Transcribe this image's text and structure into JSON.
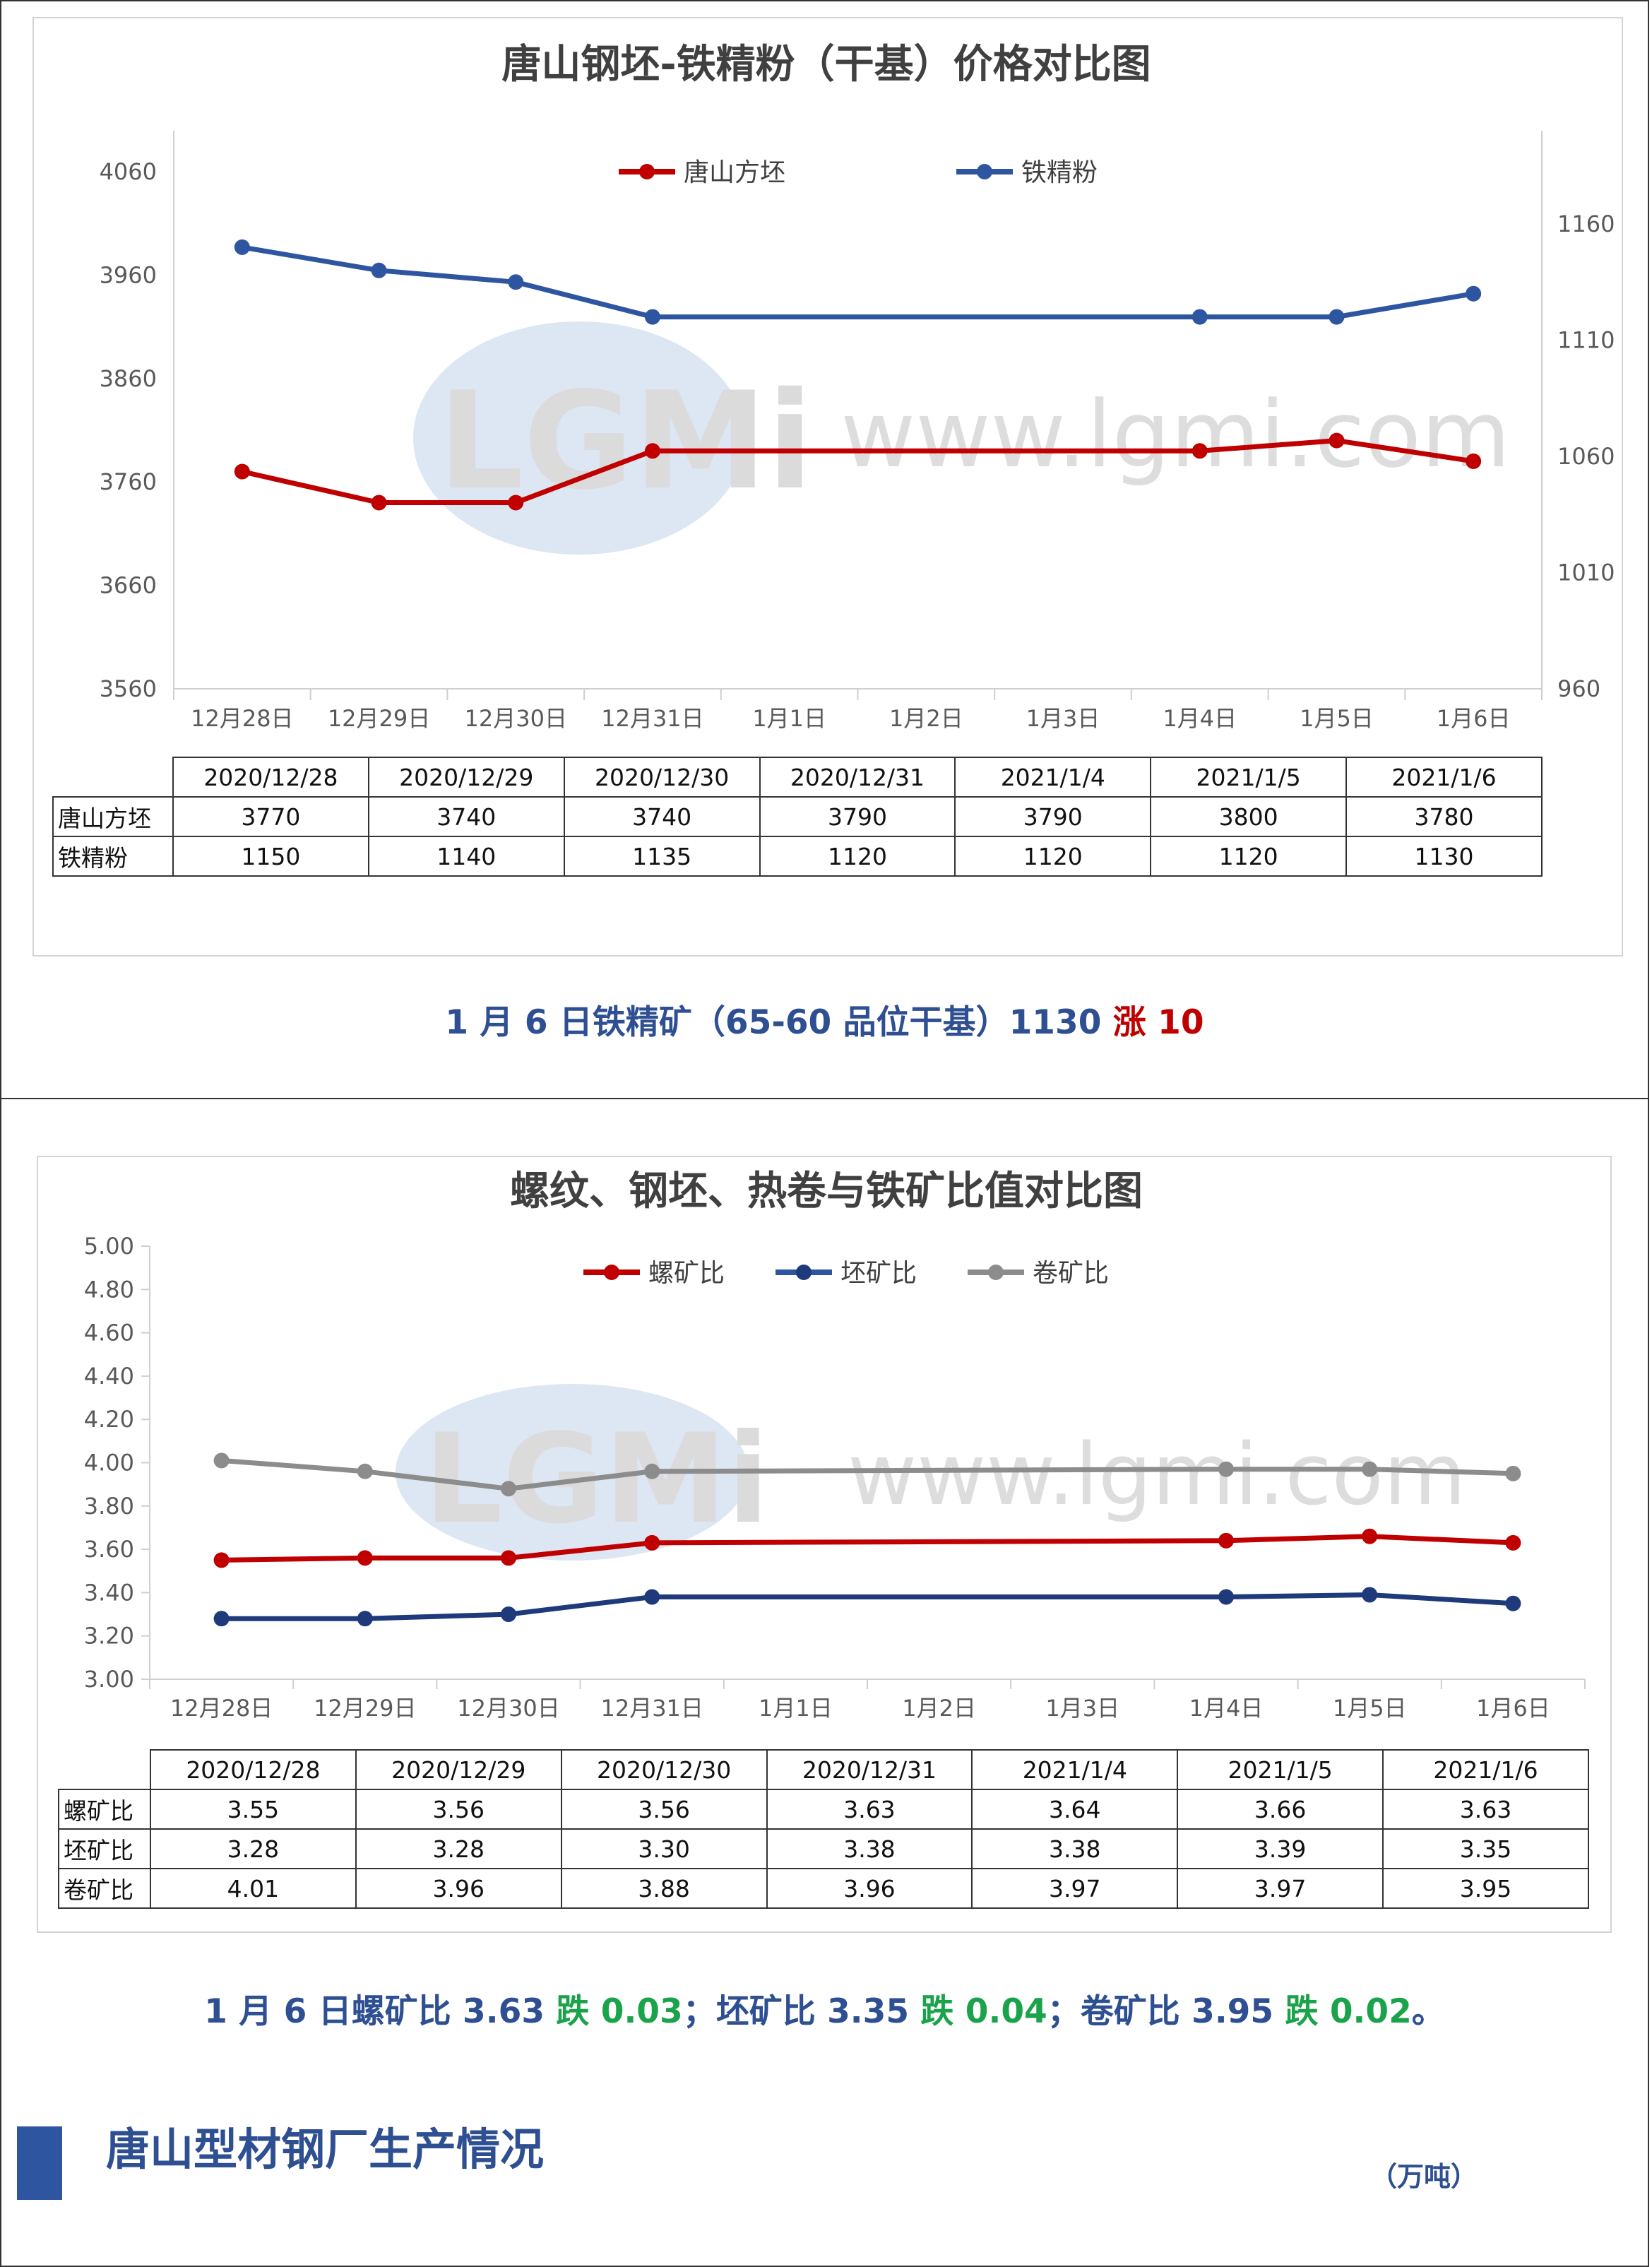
{
  "chart1": {
    "title": "唐山钢坯-铁精粉（干基）价格对比图",
    "categories": [
      "12月28日",
      "12月29日",
      "12月30日",
      "12月31日",
      "1月1日",
      "1月2日",
      "1月3日",
      "1月4日",
      "1月5日",
      "1月6日"
    ],
    "left_ticks": [
      "4060",
      "3960",
      "3860",
      "3760",
      "3660",
      "3560"
    ],
    "right_ticks": [
      "1160",
      "1110",
      "1060",
      "1010",
      "960"
    ],
    "watermark": "LGMi www.lgmi.com",
    "colors": {
      "steel": "#c00000",
      "ore": "#2e55a0"
    }
  },
  "table1": {
    "header": [
      "2020/12/28",
      "2020/12/29",
      "2020/12/30",
      "2020/12/31",
      "2021/1/4",
      "2021/1/5",
      "2021/1/6"
    ],
    "rows": [
      {
        "label": "唐山方坯",
        "values": [
          "3770",
          "3740",
          "3740",
          "3790",
          "3790",
          "3800",
          "3780"
        ]
      },
      {
        "label": "铁精粉",
        "values": [
          "1150",
          "1140",
          "1135",
          "1120",
          "1120",
          "1120",
          "1130"
        ]
      }
    ]
  },
  "summary1": {
    "text": "1 月 6 日铁精矿（65-60 品位干基）1130 ",
    "change": "涨 10"
  },
  "chart2": {
    "title": "螺纹、钢坯、热卷与铁矿比值对比图",
    "categories": [
      "12月28日",
      "12月29日",
      "12月30日",
      "12月31日",
      "1月1日",
      "1月2日",
      "1月3日",
      "1月4日",
      "1月5日",
      "1月6日"
    ],
    "y_ticks": [
      "5.00",
      "4.80",
      "4.60",
      "4.40",
      "4.20",
      "4.00",
      "3.80",
      "3.60",
      "3.40",
      "3.20",
      "3.00"
    ],
    "colors": {
      "rebar": "#c00000",
      "billet": "#1f3a7a",
      "coil": "#8c8c8c"
    }
  },
  "table2": {
    "header": [
      "2020/12/28",
      "2020/12/29",
      "2020/12/30",
      "2020/12/31",
      "2021/1/4",
      "2021/1/5",
      "2021/1/6"
    ],
    "rows": [
      {
        "label": "螺矿比",
        "values": [
          "3.55",
          "3.56",
          "3.56",
          "3.63",
          "3.64",
          "3.66",
          "3.63"
        ]
      },
      {
        "label": "坯矿比",
        "values": [
          "3.28",
          "3.28",
          "3.30",
          "3.38",
          "3.38",
          "3.39",
          "3.35"
        ]
      },
      {
        "label": "卷矿比",
        "values": [
          "4.01",
          "3.96",
          "3.88",
          "3.96",
          "3.97",
          "3.97",
          "3.95"
        ]
      }
    ]
  },
  "summary2": {
    "p1": "1 月 6 日螺矿比 3.63 ",
    "c1": "跌 0.03",
    "p2": "；坯矿比 3.35 ",
    "c2": "跌 0.04",
    "p3": "；卷矿比 3.95 ",
    "c3": "跌 0.02",
    "p4": "。"
  },
  "section": {
    "title": "唐山型材钢厂生产情况",
    "unit": "（万吨）"
  },
  "chart_data": [
    {
      "type": "line",
      "title": "唐山钢坯-铁精粉（干基）价格对比图",
      "categories": [
        "12月28日",
        "12月29日",
        "12月30日",
        "12月31日",
        "1月1日",
        "1月2日",
        "1月3日",
        "1月4日",
        "1月5日",
        "1月6日"
      ],
      "series": [
        {
          "name": "唐山方坯",
          "axis": "left",
          "values": [
            3770,
            3740,
            3740,
            3790,
            null,
            null,
            null,
            3790,
            3800,
            3780
          ]
        },
        {
          "name": "铁精粉",
          "axis": "right",
          "values": [
            1150,
            1140,
            1135,
            1120,
            null,
            null,
            null,
            1120,
            1120,
            1130
          ]
        }
      ],
      "ylim": [
        3560,
        4060
      ],
      "y2lim": [
        960,
        1185
      ],
      "legend": "top",
      "grid": false
    },
    {
      "type": "line",
      "title": "螺纹、钢坯、热卷与铁矿比值对比图",
      "categories": [
        "12月28日",
        "12月29日",
        "12月30日",
        "12月31日",
        "1月1日",
        "1月2日",
        "1月3日",
        "1月4日",
        "1月5日",
        "1月6日"
      ],
      "series": [
        {
          "name": "螺矿比",
          "values": [
            3.55,
            3.56,
            3.56,
            3.63,
            null,
            null,
            null,
            3.64,
            3.66,
            3.63
          ]
        },
        {
          "name": "坯矿比",
          "values": [
            3.28,
            3.28,
            3.3,
            3.38,
            null,
            null,
            null,
            3.38,
            3.39,
            3.35
          ]
        },
        {
          "name": "卷矿比",
          "values": [
            4.01,
            3.96,
            3.88,
            3.96,
            null,
            null,
            null,
            3.97,
            3.97,
            3.95
          ]
        }
      ],
      "ylim": [
        3.0,
        5.0
      ],
      "legend": "top",
      "grid": false
    }
  ]
}
